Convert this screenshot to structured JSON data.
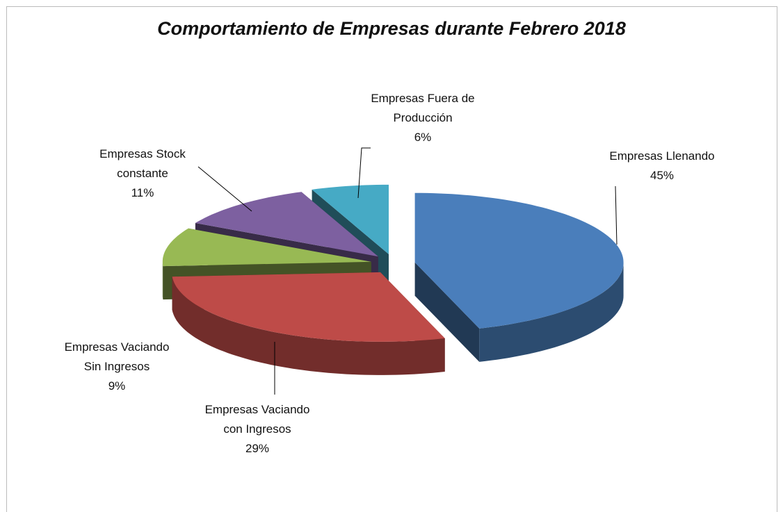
{
  "chart_data": {
    "type": "pie",
    "title": "Comportamiento de Empresas durante Febrero 2018",
    "categories": [
      "Empresas Llenando",
      "Empresas Vaciando con Ingresos",
      "Empresas Vaciando Sin Ingresos",
      "Empresas Stock constante",
      "Empresas Fuera de Producción"
    ],
    "values": [
      45,
      29,
      9,
      11,
      6
    ],
    "value_labels": [
      "45%",
      "29%",
      "9%",
      "11%",
      "6%"
    ],
    "colors": [
      "#4a7ebb",
      "#be4b48",
      "#98b954",
      "#7d60a0",
      "#46aac5"
    ]
  }
}
